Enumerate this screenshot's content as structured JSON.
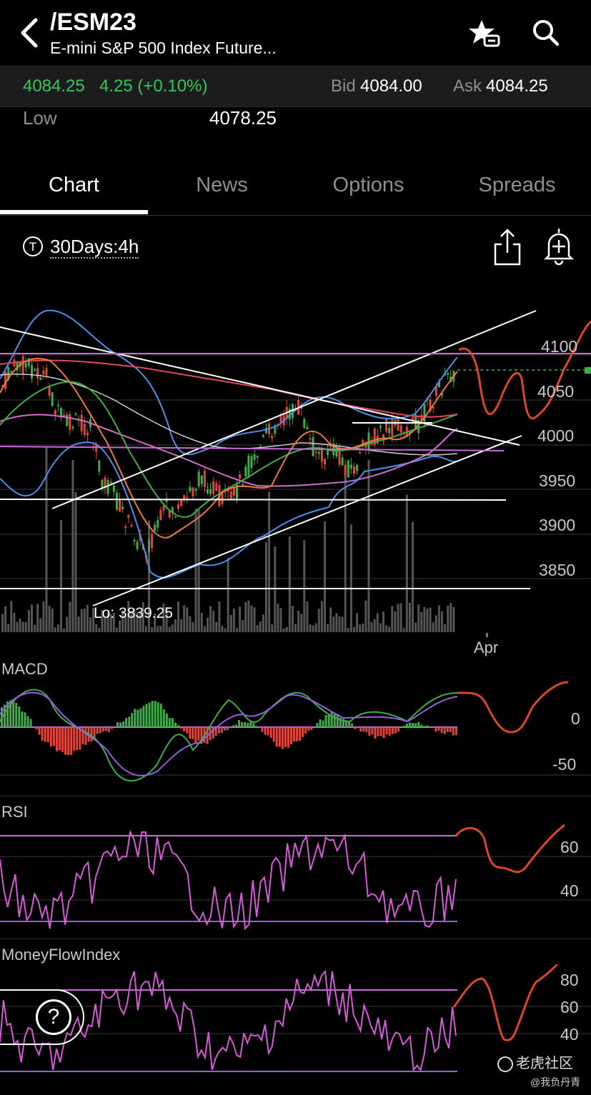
{
  "header": {
    "symbol": "/ESM23",
    "subtitle": "E-mini S&P 500 Index Future..."
  },
  "quote": {
    "last": "4084.25",
    "change": "4.25 (+0.10%)",
    "bid_label": "Bid",
    "bid": "4084.00",
    "ask_label": "Ask",
    "ask": "4084.25",
    "low_label": "Low",
    "low": "4078.25"
  },
  "tabs": [
    {
      "label": "Chart"
    },
    {
      "label": "News"
    },
    {
      "label": "Options"
    },
    {
      "label": "Spreads"
    }
  ],
  "chart": {
    "period": "30Days:4h",
    "price_axis": [
      "4100",
      "4050",
      "4000",
      "3950",
      "3900",
      "3850"
    ],
    "low_marker": "Lo: 3839.25",
    "month_label": "Apr"
  },
  "macd": {
    "label": "MACD",
    "axis": [
      "0",
      "-50"
    ]
  },
  "rsi": {
    "label": "RSI",
    "axis": [
      "60",
      "40"
    ]
  },
  "mfi": {
    "label": "MoneyFlowIndex",
    "axis": [
      "80",
      "60",
      "40"
    ]
  },
  "help": {
    "glyph": "?"
  },
  "watermark": {
    "brand": "老虎社区",
    "user": "@我负丹青"
  },
  "colors": {
    "up": "#3fae49",
    "down": "#e0473c",
    "positive_text": "#34c759",
    "accent_lines": "#c86bd8",
    "forecast": "#d9462a"
  }
}
